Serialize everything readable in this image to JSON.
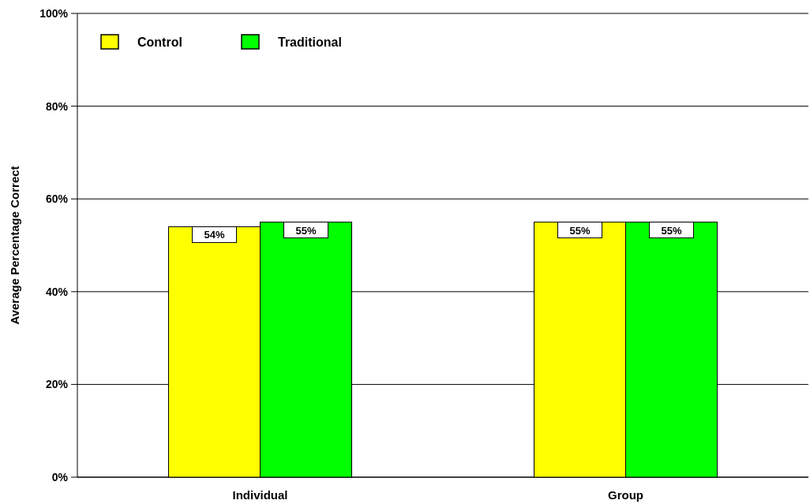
{
  "chart_data": {
    "type": "bar",
    "ylabel": "Average Percentage Correct",
    "categories": [
      "Individual",
      "Group"
    ],
    "series": [
      {
        "name": "Control",
        "color": "#ffff00",
        "values": [
          54,
          55
        ],
        "value_labels": [
          "54%",
          "55%"
        ]
      },
      {
        "name": "Traditional",
        "color": "#00ff00",
        "values": [
          55,
          55
        ],
        "value_labels": [
          "55%",
          "55%"
        ]
      }
    ],
    "ylim": [
      0,
      100
    ],
    "yticks": [
      {
        "value": 0,
        "label": "0%"
      },
      {
        "value": 20,
        "label": "20%"
      },
      {
        "value": 40,
        "label": "40%"
      },
      {
        "value": 60,
        "label": "60%"
      },
      {
        "value": 80,
        "label": "80%"
      },
      {
        "value": 100,
        "label": "100%"
      }
    ],
    "grid": "y",
    "legend": "top left"
  }
}
